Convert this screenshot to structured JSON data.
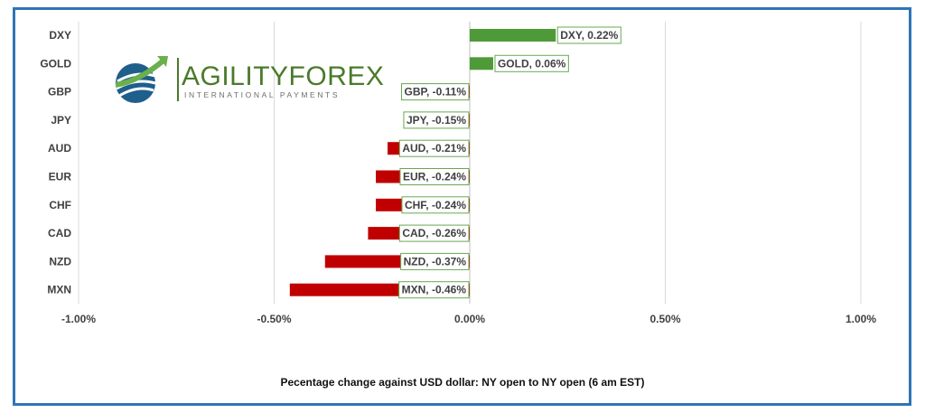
{
  "brand": {
    "name": "AGILITYFOREX",
    "tagline": "INTERNATIONAL PAYMENTS"
  },
  "chart_data": {
    "type": "bar",
    "orientation": "horizontal",
    "categories": [
      "DXY",
      "GOLD",
      "GBP",
      "JPY",
      "AUD",
      "EUR",
      "CHF",
      "CAD",
      "NZD",
      "MXN"
    ],
    "values": [
      0.22,
      0.06,
      -0.11,
      -0.15,
      -0.21,
      -0.24,
      -0.24,
      -0.26,
      -0.37,
      -0.46
    ],
    "data_labels": [
      "DXY, 0.22%",
      "GOLD, 0.06%",
      "GBP, -0.11%",
      "JPY, -0.15%",
      "AUD, -0.21%",
      "EUR, -0.24%",
      "CHF, -0.24%",
      "CAD, -0.26%",
      "NZD, -0.37%",
      "MXN, -0.46%"
    ],
    "xlim": [
      -1.0,
      1.0
    ],
    "xticks": [
      -1.0,
      -0.5,
      0.0,
      0.5,
      1.0
    ],
    "xtick_labels": [
      "-1.00%",
      "-0.50%",
      "0.00%",
      "0.50%",
      "1.00%"
    ],
    "grid": true,
    "colors": {
      "positive": "#4e9a38",
      "negative": "#c00000",
      "label_border": "#6aa84f",
      "grid": "#d9d9d9",
      "frame": "#2e75b6"
    },
    "footnote": "Pecentage change against USD dollar:  NY open to NY open  (6 am EST)"
  }
}
